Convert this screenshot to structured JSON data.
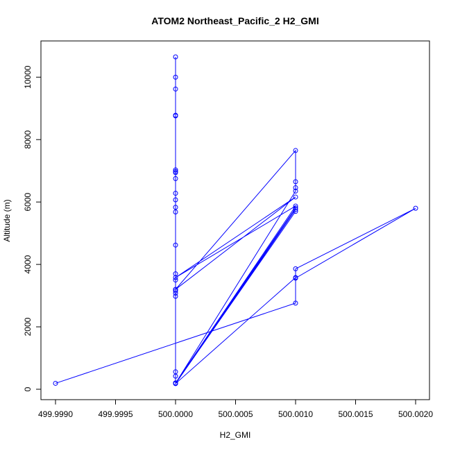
{
  "chart_data": {
    "type": "line",
    "title": "ATOM2 Northeast_Pacific_2 H2_GMI",
    "xlabel": "H2_GMI",
    "ylabel": "Altitude (m)",
    "xlim": [
      499.999,
      500.002
    ],
    "ylim": [
      0,
      11000
    ],
    "xticks": [
      499.999,
      499.9995,
      500.0,
      500.0005,
      500.001,
      500.0015,
      500.002
    ],
    "xtick_labels": [
      "499.9990",
      "499.9995",
      "500.0000",
      "500.0005",
      "500.0010",
      "500.0015",
      "500.0020"
    ],
    "yticks": [
      0,
      2000,
      4000,
      6000,
      8000,
      10000
    ],
    "ytick_labels": [
      "0",
      "2000",
      "4000",
      "6000",
      "8000",
      "10000"
    ],
    "grid": false,
    "legend": "none",
    "series_color": "#0000ff",
    "marker": "open-circle",
    "series": [
      {
        "x": [
          500.0,
          500.0,
          500.0,
          500.0,
          500.0,
          500.0,
          500.0,
          500.0,
          500.0,
          500.0,
          500.0,
          500.0,
          500.0,
          500.0,
          500.0,
          500.0,
          500.0,
          500.0,
          500.0,
          500.0,
          500.0,
          500.0,
          500.0,
          500.0,
          500.001,
          500.001,
          500.001,
          500.001,
          500.0,
          500.001,
          500.0,
          500.001,
          500.0,
          500.001,
          500.0,
          500.001,
          500.0,
          500.001,
          500.0,
          500.001,
          500.001,
          500.002,
          500.001,
          500.001,
          499.999
        ],
        "y": [
          10650,
          10000,
          9620,
          8780,
          8760,
          7030,
          6980,
          6940,
          6750,
          6280,
          6070,
          5830,
          5680,
          4620,
          3700,
          3500,
          3200,
          3150,
          3080,
          2980,
          560,
          420,
          200,
          190,
          6350,
          6460,
          6650,
          7650,
          3200,
          6160,
          3580,
          5870,
          200,
          5810,
          190,
          5760,
          200,
          5700,
          180,
          3580,
          3860,
          5800,
          3560,
          2760,
          190
        ]
      }
    ]
  }
}
